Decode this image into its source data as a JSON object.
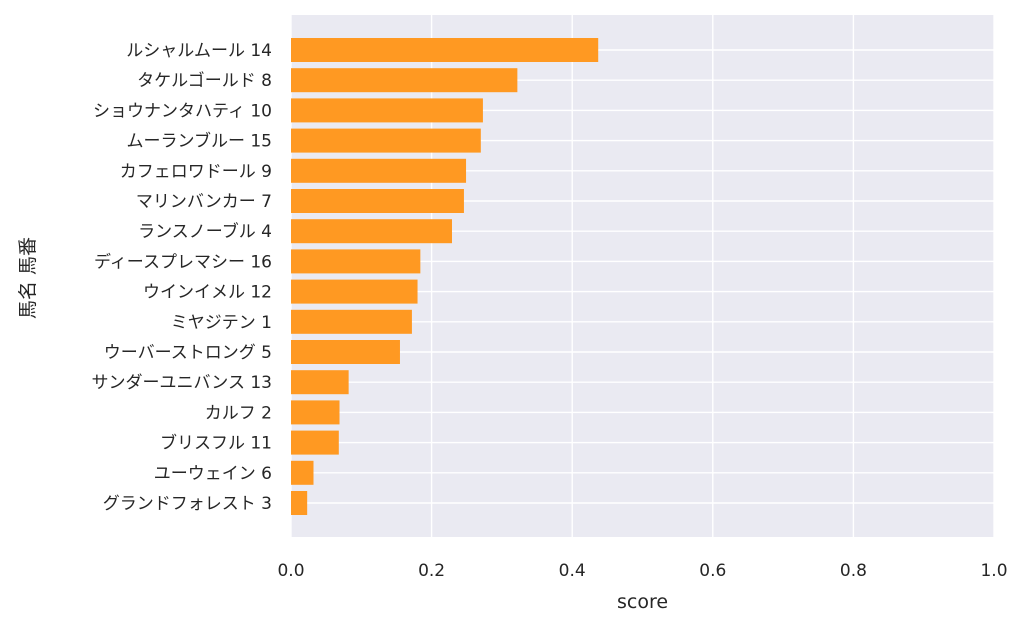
{
  "chart_data": {
    "type": "bar",
    "orientation": "horizontal",
    "xlabel": "score",
    "ylabel": "馬名 馬番",
    "xlim": [
      0.0,
      1.0
    ],
    "xticks": [
      "0.0",
      "0.2",
      "0.4",
      "0.6",
      "0.8",
      "1.0"
    ],
    "grid": true,
    "bar_color": "#ff9922",
    "background_color": "#eaeaf2",
    "categories": [
      "ルシャルムール 14",
      "タケルゴールド 8",
      "ショウナンタハティ 10",
      "ムーランブルー 15",
      "カフェロワドール 9",
      "マリンバンカー 7",
      "ランスノーブル 4",
      "ディースプレマシー 16",
      "ウインイメル 12",
      "ミヤジテン 1",
      "ウーバーストロング 5",
      "サンダーユニバンス 13",
      "カルフ 2",
      "ブリスフル 11",
      "ユーウェイン 6",
      "グランドフォレスト 3"
    ],
    "values": [
      0.437,
      0.322,
      0.273,
      0.27,
      0.249,
      0.246,
      0.229,
      0.184,
      0.18,
      0.172,
      0.155,
      0.082,
      0.069,
      0.068,
      0.032,
      0.023
    ]
  }
}
